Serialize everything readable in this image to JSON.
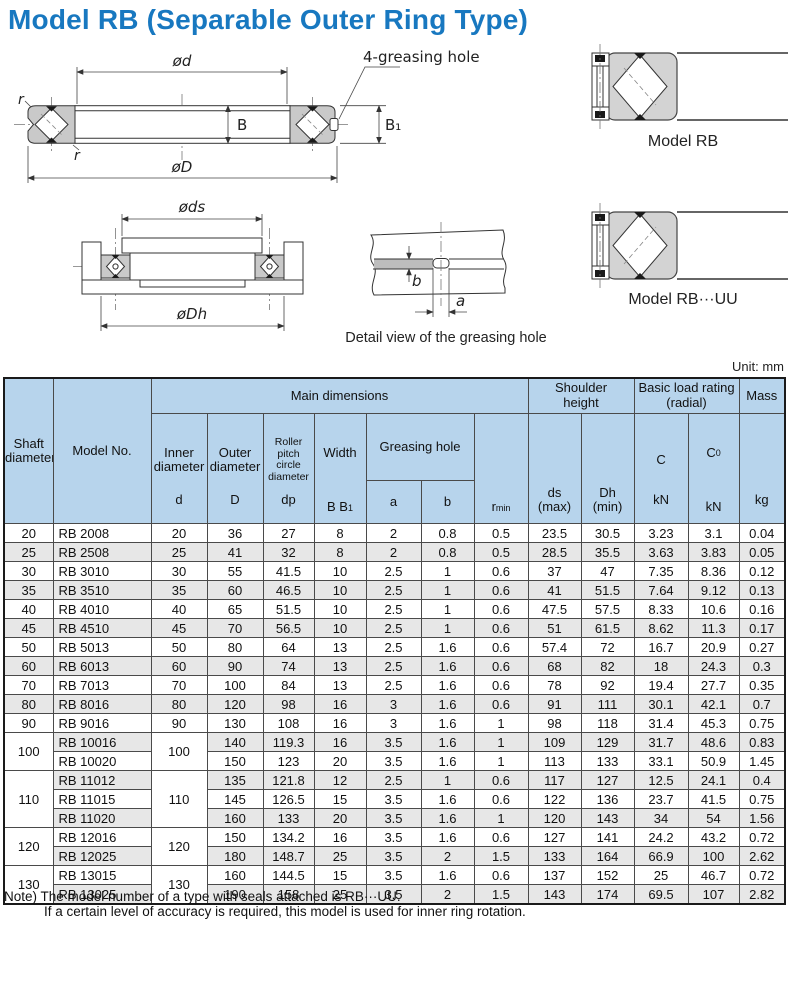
{
  "title": "Model RB (Separable Outer Ring Type)",
  "unit_label": "Unit: mm",
  "diagram_top": {
    "phi_d": "ød",
    "greasing_label": "4-greasing hole",
    "r_top": "r",
    "r_bottom": "r",
    "B": "B",
    "B1": "B₁",
    "phi_D": "øD"
  },
  "diagram_mounted": {
    "phi_ds": "øds",
    "phi_Dh": "øDh"
  },
  "diagram_detail": {
    "a": "a",
    "b": "b",
    "caption": "Detail view of the greasing hole"
  },
  "side_images": {
    "rb_caption": "Model RB",
    "rbuu_caption": "Model RB···UU"
  },
  "table": {
    "headers": {
      "shaft": "Shaft\ndiameter",
      "model": "Model No.",
      "main": "Main dimensions",
      "inner": "Inner\ndiameter",
      "inner_sym": "d",
      "outer": "Outer\ndiameter",
      "outer_sym": "D",
      "rpcd": "Roller pitch\ncircle\ndiameter",
      "rpcd_sym": "dp",
      "width": "Width",
      "width_sym_base": "B B",
      "width_sym_sub": "1",
      "greasing": "Greasing hole",
      "a": "a",
      "b": "b",
      "rmin_base": "r",
      "rmin_sub": "min",
      "shoulder": "Shoulder\nheight",
      "ds": "ds\n(max)",
      "dh": "Dh\n(min)",
      "blr": "Basic load rating\n(radial)",
      "c": "C",
      "c0_base": "C",
      "c0_sub": "0",
      "kn1": "kN",
      "kn2": "kN",
      "mass": "Mass",
      "kg": "kg"
    },
    "groups": [
      {
        "shaft": "20",
        "inner": "20",
        "rows": [
          {
            "model": "RB 2008",
            "D": "36",
            "dp": "27",
            "B": "8",
            "a": "2",
            "b": "0.8",
            "rmin": "0.5",
            "ds": "23.5",
            "dh": "30.5",
            "c": "3.23",
            "c0": "3.1",
            "mass": "0.04"
          }
        ]
      },
      {
        "shaft": "25",
        "inner": "25",
        "rows": [
          {
            "model": "RB 2508",
            "D": "41",
            "dp": "32",
            "B": "8",
            "a": "2",
            "b": "0.8",
            "rmin": "0.5",
            "ds": "28.5",
            "dh": "35.5",
            "c": "3.63",
            "c0": "3.83",
            "mass": "0.05"
          }
        ]
      },
      {
        "shaft": "30",
        "inner": "30",
        "rows": [
          {
            "model": "RB 3010",
            "D": "55",
            "dp": "41.5",
            "B": "10",
            "a": "2.5",
            "b": "1",
            "rmin": "0.6",
            "ds": "37",
            "dh": "47",
            "c": "7.35",
            "c0": "8.36",
            "mass": "0.12"
          }
        ]
      },
      {
        "shaft": "35",
        "inner": "35",
        "rows": [
          {
            "model": "RB 3510",
            "D": "60",
            "dp": "46.5",
            "B": "10",
            "a": "2.5",
            "b": "1",
            "rmin": "0.6",
            "ds": "41",
            "dh": "51.5",
            "c": "7.64",
            "c0": "9.12",
            "mass": "0.13"
          }
        ]
      },
      {
        "shaft": "40",
        "inner": "40",
        "rows": [
          {
            "model": "RB 4010",
            "D": "65",
            "dp": "51.5",
            "B": "10",
            "a": "2.5",
            "b": "1",
            "rmin": "0.6",
            "ds": "47.5",
            "dh": "57.5",
            "c": "8.33",
            "c0": "10.6",
            "mass": "0.16"
          }
        ]
      },
      {
        "shaft": "45",
        "inner": "45",
        "rows": [
          {
            "model": "RB 4510",
            "D": "70",
            "dp": "56.5",
            "B": "10",
            "a": "2.5",
            "b": "1",
            "rmin": "0.6",
            "ds": "51",
            "dh": "61.5",
            "c": "8.62",
            "c0": "11.3",
            "mass": "0.17"
          }
        ]
      },
      {
        "shaft": "50",
        "inner": "50",
        "rows": [
          {
            "model": "RB 5013",
            "D": "80",
            "dp": "64",
            "B": "13",
            "a": "2.5",
            "b": "1.6",
            "rmin": "0.6",
            "ds": "57.4",
            "dh": "72",
            "c": "16.7",
            "c0": "20.9",
            "mass": "0.27"
          }
        ]
      },
      {
        "shaft": "60",
        "inner": "60",
        "rows": [
          {
            "model": "RB 6013",
            "D": "90",
            "dp": "74",
            "B": "13",
            "a": "2.5",
            "b": "1.6",
            "rmin": "0.6",
            "ds": "68",
            "dh": "82",
            "c": "18",
            "c0": "24.3",
            "mass": "0.3"
          }
        ]
      },
      {
        "shaft": "70",
        "inner": "70",
        "rows": [
          {
            "model": "RB 7013",
            "D": "100",
            "dp": "84",
            "B": "13",
            "a": "2.5",
            "b": "1.6",
            "rmin": "0.6",
            "ds": "78",
            "dh": "92",
            "c": "19.4",
            "c0": "27.7",
            "mass": "0.35"
          }
        ]
      },
      {
        "shaft": "80",
        "inner": "80",
        "rows": [
          {
            "model": "RB 8016",
            "D": "120",
            "dp": "98",
            "B": "16",
            "a": "3",
            "b": "1.6",
            "rmin": "0.6",
            "ds": "91",
            "dh": "111",
            "c": "30.1",
            "c0": "42.1",
            "mass": "0.7"
          }
        ]
      },
      {
        "shaft": "90",
        "inner": "90",
        "rows": [
          {
            "model": "RB 9016",
            "D": "130",
            "dp": "108",
            "B": "16",
            "a": "3",
            "b": "1.6",
            "rmin": "1",
            "ds": "98",
            "dh": "118",
            "c": "31.4",
            "c0": "45.3",
            "mass": "0.75"
          }
        ]
      },
      {
        "shaft": "100",
        "inner": "100",
        "rows": [
          {
            "model": "RB 10016",
            "D": "140",
            "dp": "119.3",
            "B": "16",
            "a": "3.5",
            "b": "1.6",
            "rmin": "1",
            "ds": "109",
            "dh": "129",
            "c": "31.7",
            "c0": "48.6",
            "mass": "0.83"
          },
          {
            "model": "RB 10020",
            "D": "150",
            "dp": "123",
            "B": "20",
            "a": "3.5",
            "b": "1.6",
            "rmin": "1",
            "ds": "113",
            "dh": "133",
            "c": "33.1",
            "c0": "50.9",
            "mass": "1.45"
          }
        ]
      },
      {
        "shaft": "110",
        "inner": "110",
        "rows": [
          {
            "model": "RB 11012",
            "D": "135",
            "dp": "121.8",
            "B": "12",
            "a": "2.5",
            "b": "1",
            "rmin": "0.6",
            "ds": "117",
            "dh": "127",
            "c": "12.5",
            "c0": "24.1",
            "mass": "0.4"
          },
          {
            "model": "RB 11015",
            "D": "145",
            "dp": "126.5",
            "B": "15",
            "a": "3.5",
            "b": "1.6",
            "rmin": "0.6",
            "ds": "122",
            "dh": "136",
            "c": "23.7",
            "c0": "41.5",
            "mass": "0.75"
          },
          {
            "model": "RB 11020",
            "D": "160",
            "dp": "133",
            "B": "20",
            "a": "3.5",
            "b": "1.6",
            "rmin": "1",
            "ds": "120",
            "dh": "143",
            "c": "34",
            "c0": "54",
            "mass": "1.56"
          }
        ]
      },
      {
        "shaft": "120",
        "inner": "120",
        "rows": [
          {
            "model": "RB 12016",
            "D": "150",
            "dp": "134.2",
            "B": "16",
            "a": "3.5",
            "b": "1.6",
            "rmin": "0.6",
            "ds": "127",
            "dh": "141",
            "c": "24.2",
            "c0": "43.2",
            "mass": "0.72"
          },
          {
            "model": "RB 12025",
            "D": "180",
            "dp": "148.7",
            "B": "25",
            "a": "3.5",
            "b": "2",
            "rmin": "1.5",
            "ds": "133",
            "dh": "164",
            "c": "66.9",
            "c0": "100",
            "mass": "2.62"
          }
        ]
      },
      {
        "shaft": "130",
        "inner": "130",
        "rows": [
          {
            "model": "RB 13015",
            "D": "160",
            "dp": "144.5",
            "B": "15",
            "a": "3.5",
            "b": "1.6",
            "rmin": "0.6",
            "ds": "137",
            "dh": "152",
            "c": "25",
            "c0": "46.7",
            "mass": "0.72"
          },
          {
            "model": "RB 13025",
            "D": "190",
            "dp": "158",
            "B": "25",
            "a": "3.5",
            "b": "2",
            "rmin": "1.5",
            "ds": "143",
            "dh": "174",
            "c": "69.5",
            "c0": "107",
            "mass": "2.82"
          }
        ]
      }
    ]
  },
  "notes": {
    "line1": "Note) The model number of a type with seals attached is RB···UU.",
    "line2": "If a certain level of accuracy is required, this model is used for inner ring rotation."
  }
}
